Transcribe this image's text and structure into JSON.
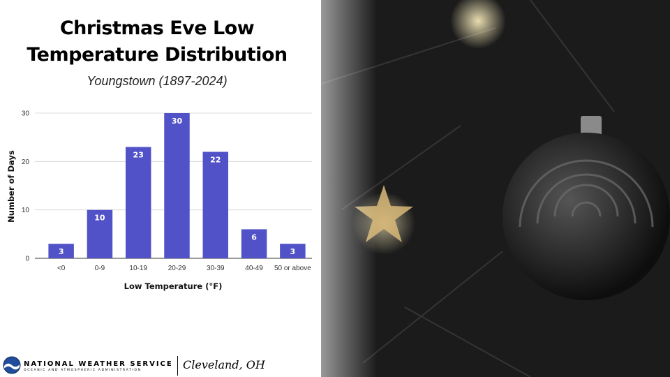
{
  "title_line1": "Christmas Eve Low",
  "title_line2": "Temperature Distribution",
  "subtitle": "Youngstown (1897-2024)",
  "colors": {
    "bar": "#5252c8",
    "grid": "#d0d0d0",
    "background": "#ffffff"
  },
  "chart_data": {
    "type": "bar",
    "categories": [
      "<0",
      "0-9",
      "10-19",
      "20-29",
      "30-39",
      "40-49",
      "50 or above"
    ],
    "values": [
      3,
      10,
      23,
      30,
      22,
      6,
      3
    ],
    "xlabel": "Low Temperature (°F)",
    "ylabel": "Number of Days",
    "ylim": [
      0,
      30
    ],
    "yticks": [
      0,
      10,
      20,
      30
    ],
    "grid": true,
    "data_labels": true
  },
  "footer": {
    "agency": "NATIONAL WEATHER SERVICE",
    "agency_sub": "OCEANIC AND ATMOSPHERIC ADMINISTRATION",
    "office": "Cleveland, OH"
  }
}
